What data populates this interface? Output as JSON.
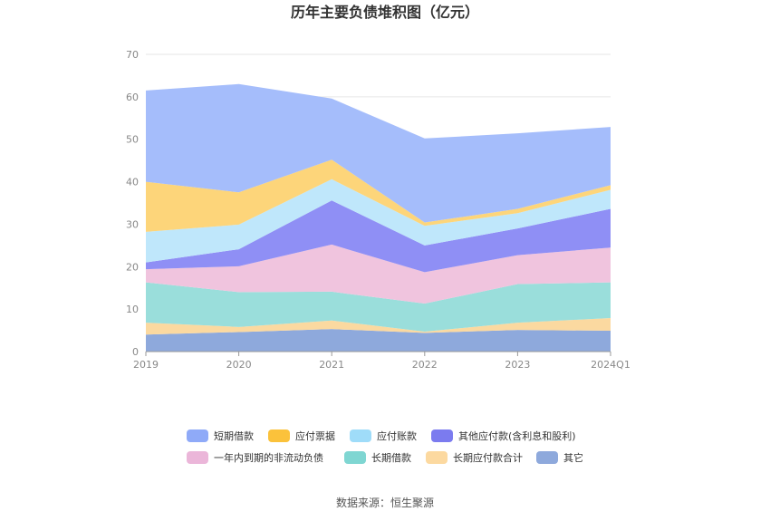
{
  "chart_data": {
    "type": "area",
    "stacked": true,
    "title": "历年主要负债堆积图（亿元）",
    "categories": [
      "2019",
      "2020",
      "2021",
      "2022",
      "2023",
      "2024Q1"
    ],
    "ylim": [
      0,
      70
    ],
    "yticks": [
      0,
      10,
      20,
      30,
      40,
      50,
      60,
      70
    ],
    "grid": true,
    "legend_position": "bottom",
    "series": [
      {
        "name": "其它",
        "color": "#8ea9dc",
        "values": [
          4.0,
          4.6,
          5.3,
          4.4,
          5.1,
          4.9
        ]
      },
      {
        "name": "长期应付款合计",
        "color": "#fbd9a0",
        "values": [
          2.8,
          1.2,
          2.0,
          0.3,
          1.7,
          3.0
        ]
      },
      {
        "name": "长期借款",
        "color": "#9adedb",
        "values": [
          9.5,
          8.2,
          6.8,
          6.6,
          9.1,
          8.4
        ]
      },
      {
        "name": "一年内到期的非流动负债",
        "color": "#f0c4de",
        "values": [
          3.1,
          6.1,
          11.1,
          7.4,
          6.8,
          8.2
        ]
      },
      {
        "name": "其他应付款(含利息和股利)",
        "color": "#8f8ff5",
        "values": [
          1.6,
          4.0,
          10.4,
          6.3,
          6.3,
          9.1
        ]
      },
      {
        "name": "应付账款",
        "color": "#bfe7fb",
        "values": [
          7.2,
          5.8,
          5.0,
          4.6,
          3.6,
          4.5
        ]
      },
      {
        "name": "应付票据",
        "color": "#fdd57a",
        "values": [
          11.8,
          7.6,
          4.6,
          0.8,
          1.0,
          1.1
        ]
      },
      {
        "name": "短期借款",
        "color": "#a5bdfb",
        "values": [
          21.5,
          25.5,
          14.4,
          19.8,
          17.8,
          13.7
        ]
      }
    ],
    "legend_order": [
      "短期借款",
      "应付票据",
      "应付账款",
      "其他应付款(含利息和股利)",
      "一年内到期的非流动负债",
      "长期借款",
      "长期应付款合计",
      "其它"
    ],
    "legend_swatch_colors": {
      "短期借款": "#8faaf8",
      "应付票据": "#fbc23b",
      "应付账款": "#9fdcf9",
      "其他应付款(含利息和股利)": "#7b7bef",
      "一年内到期的非流动负债": "#ebb6d9",
      "长期借款": "#7fd6d2",
      "长期应付款合计": "#fcd9a0",
      "其它": "#8ea9dc"
    }
  },
  "source_text": "数据来源：恒生聚源"
}
